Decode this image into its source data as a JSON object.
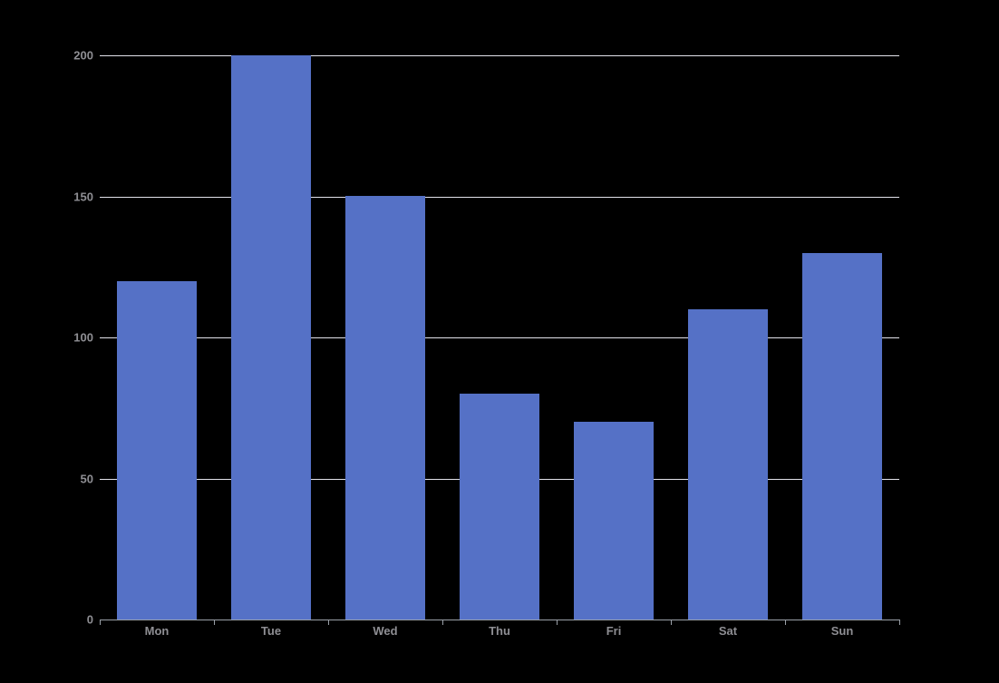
{
  "chart_data": {
    "type": "bar",
    "categories": [
      "Mon",
      "Tue",
      "Wed",
      "Thu",
      "Fri",
      "Sat",
      "Sun"
    ],
    "values": [
      120,
      200,
      150,
      80,
      70,
      110,
      130
    ],
    "yticks": [
      0,
      50,
      100,
      150,
      200
    ],
    "ylim": [
      0,
      200
    ],
    "grid": true,
    "legend": false,
    "layout_hints": {
      "gridlines_horizontal_only": true,
      "x_ticks_below_axis": true,
      "bars_drawn_over_gridlines": true
    },
    "colors": {
      "background": "#000000",
      "bar": "#5571C6",
      "gridline": "#E2E2EA",
      "axis_line": "#9AA0A8",
      "tick_label": "#8E8E93"
    }
  }
}
